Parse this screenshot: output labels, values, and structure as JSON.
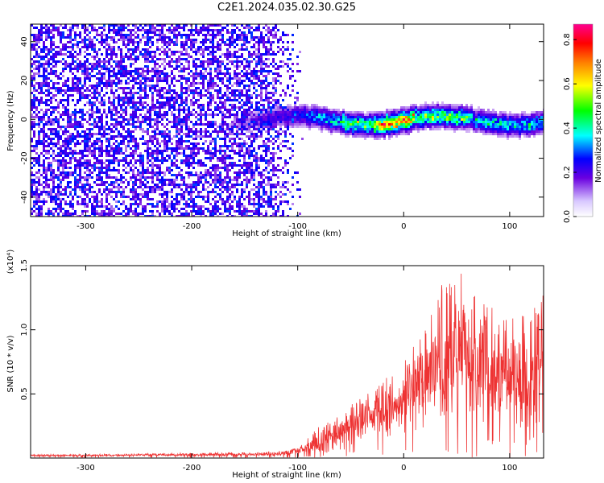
{
  "title": "C2E1.2024.035.02.30.G25",
  "chart_data": [
    {
      "type": "heatmap",
      "xlabel": "Height of straight line (km)",
      "ylabel": "Frequency (Hz)",
      "xlim": [
        -352,
        132
      ],
      "ylim": [
        -50,
        49
      ],
      "x_ticks": [
        -300,
        -200,
        -100,
        0,
        100
      ],
      "x_tick_labels": [
        "-300",
        "-200",
        "-100",
        "0",
        "100"
      ],
      "y_ticks": [
        -40,
        -20,
        0,
        20,
        40
      ],
      "y_tick_labels": [
        "-40",
        "-20",
        "0",
        "20",
        "40"
      ],
      "colorbar": {
        "label": "Normalized spectral amplitude",
        "range": [
          0,
          0.87
        ],
        "ticks": [
          0,
          0.2,
          0.4,
          0.6,
          0.8
        ],
        "tick_labels": [
          "0.0",
          "0.2",
          "0.4",
          "0.6",
          "0.8"
        ],
        "colormap": [
          "#ffffff",
          "#6a00e0",
          "#0000ff",
          "#00ffff",
          "#00ff00",
          "#ffff00",
          "#ff8000",
          "#ff0000",
          "#ff0090"
        ]
      },
      "description_points": {
        "noise_region_x": [
          -352,
          -95
        ],
        "signal_band_center_hz": 0,
        "signal_band_halfwidth_hz": 6,
        "peak_x": [
          -30,
          10
        ]
      }
    },
    {
      "type": "line",
      "xlabel": "Height of straight line (km)",
      "ylabel": "SNR (10 * v/v)",
      "y_scale_label": "(x10⁴)",
      "xlim": [
        -352,
        132
      ],
      "ylim": [
        0,
        1.5
      ],
      "x_ticks": [
        -300,
        -200,
        -100,
        0,
        100
      ],
      "x_tick_labels": [
        "-300",
        "-200",
        "-100",
        "0",
        "100"
      ],
      "y_ticks": [
        0.5,
        1.0,
        1.5
      ],
      "y_tick_labels": [
        "0.5",
        "1.0",
        "1.5"
      ],
      "color": "#ee3333",
      "envelope": {
        "x": [
          -352,
          -300,
          -200,
          -120,
          -100,
          -80,
          -60,
          -40,
          -20,
          0,
          20,
          40,
          50,
          60,
          80,
          100,
          120,
          132
        ],
        "y_max": [
          0.03,
          0.03,
          0.04,
          0.05,
          0.08,
          0.25,
          0.35,
          0.5,
          0.6,
          0.75,
          1.1,
          1.45,
          1.5,
          1.4,
          1.2,
          1.15,
          1.3,
          1.35
        ],
        "y_typ": [
          0.02,
          0.02,
          0.025,
          0.03,
          0.05,
          0.12,
          0.2,
          0.3,
          0.35,
          0.45,
          0.65,
          0.8,
          0.85,
          0.8,
          0.72,
          0.68,
          0.62,
          0.65
        ]
      }
    }
  ]
}
